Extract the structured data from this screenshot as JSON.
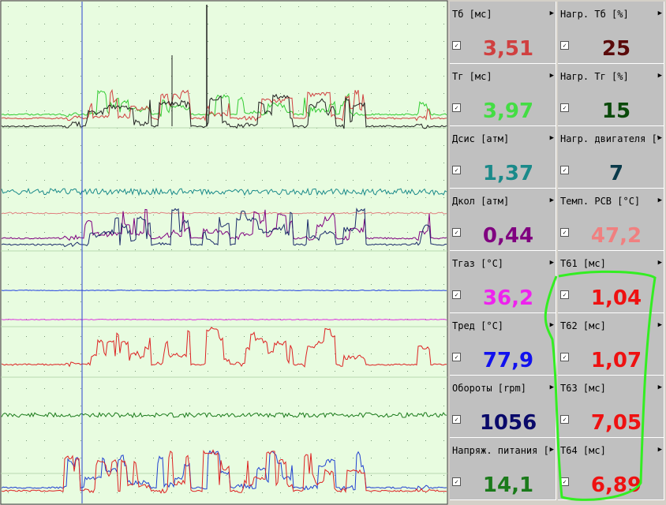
{
  "colors": {
    "plot_bg": "#e8fce0",
    "grid_dot": "#7a9a7a",
    "cursor": "#2a3fd0",
    "highlight": "#33ee22"
  },
  "cells": [
    {
      "label": "Тб [мс]",
      "value": "3,51",
      "color": "#d04040"
    },
    {
      "label": "Нагр. Тб [%]",
      "value": "25",
      "color": "#5a0a0a"
    },
    {
      "label": "Тг [мс]",
      "value": "3,97",
      "color": "#44dd44"
    },
    {
      "label": "Нагр. Тг [%]",
      "value": "15",
      "color": "#0a4a0a"
    },
    {
      "label": "Дсис [атм]",
      "value": "1,37",
      "color": "#1a8a8a"
    },
    {
      "label": "Нагр. двигателя [%]",
      "value": "7",
      "color": "#0a3a4a"
    },
    {
      "label": "Дкол [атм]",
      "value": "0,44",
      "color": "#800080"
    },
    {
      "label": "Темп. РСВ [°C]",
      "value": "47,2",
      "color": "#f08080"
    },
    {
      "label": "Тгаз [°C]",
      "value": "36,2",
      "color": "#ee22ee"
    },
    {
      "label": "Т61 [мс]",
      "value": "1,04",
      "color": "#ee1111"
    },
    {
      "label": "Тред [°C]",
      "value": "77,9",
      "color": "#1111ee"
    },
    {
      "label": "Т62 [мс]",
      "value": "1,07",
      "color": "#ee1111"
    },
    {
      "label": "Обороты [rpm]",
      "value": "1056",
      "color": "#0a0a6a"
    },
    {
      "label": "Т63 [мс]",
      "value": "7,05",
      "color": "#ee1111"
    },
    {
      "label": "Напряж. питания [В]",
      "value": "14,1",
      "color": "#1a7a1a"
    },
    {
      "label": "Т64 [мс]",
      "value": "6,89",
      "color": "#ee1111"
    }
  ],
  "traces": [
    {
      "name": "tg-green",
      "color": "#33cc33",
      "base": 145,
      "amp": 30,
      "seed": 1
    },
    {
      "name": "tb-red",
      "color": "#d04040",
      "base": 150,
      "amp": 34,
      "seed": 2
    },
    {
      "name": "black",
      "color": "#202020",
      "base": 160,
      "amp": 40,
      "seed": 3
    },
    {
      "name": "dsis-teal",
      "color": "#1a8a8a",
      "base": 243,
      "amp": 4,
      "seed": 4
    },
    {
      "name": "pink",
      "color": "#e08080",
      "base": 270,
      "amp": 1,
      "seed": 5
    },
    {
      "name": "dkol-purple",
      "color": "#800080",
      "base": 302,
      "amp": 40,
      "seed": 6
    },
    {
      "name": "navy",
      "color": "#1a2a6a",
      "base": 310,
      "amp": 45,
      "seed": 7
    },
    {
      "name": "blue-flat",
      "color": "#2040e0",
      "base": 368,
      "amp": 0.5,
      "seed": 8
    },
    {
      "name": "magenta-flat",
      "color": "#dd33dd",
      "base": 405,
      "amp": 0.5,
      "seed": 9
    },
    {
      "name": "red-pulses",
      "color": "#dd2222",
      "base": 462,
      "amp": 45,
      "seed": 10
    },
    {
      "name": "green-noise",
      "color": "#1a7a1a",
      "base": 526,
      "amp": 3,
      "seed": 11
    },
    {
      "name": "blue-wave",
      "color": "#2040d0",
      "base": 618,
      "amp": 45,
      "seed": 12
    },
    {
      "name": "red-bottom",
      "color": "#dd2222",
      "base": 622,
      "amp": 50,
      "seed": 13
    }
  ]
}
